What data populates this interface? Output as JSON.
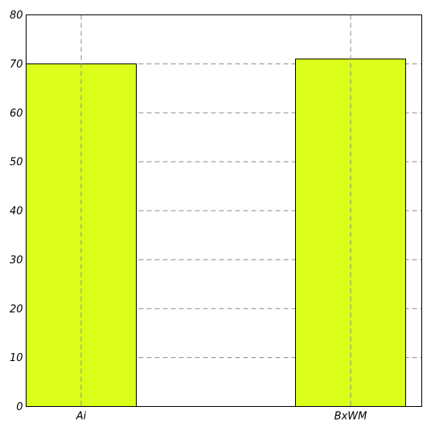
{
  "chart_data": {
    "type": "bar",
    "categories": [
      "Ai",
      "BxWM"
    ],
    "values": [
      70,
      71
    ],
    "ylim": [
      0,
      80
    ],
    "yticks": [
      0,
      10,
      20,
      30,
      40,
      50,
      60,
      70,
      80
    ],
    "grid": true,
    "bar_color": "#dbff1a",
    "title": "",
    "xlabel": "",
    "ylabel": ""
  }
}
